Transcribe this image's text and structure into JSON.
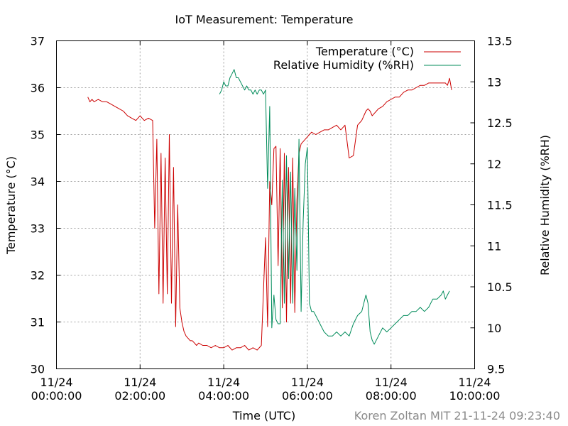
{
  "chart_data": {
    "type": "line",
    "title": "IoT Measurement: Temperature",
    "xlabel": "Time (UTC)",
    "ylabel": "Temperature (°C)",
    "y2label": "Relative Humidity (%RH)",
    "credit": "Koren Zoltan MIT 21-11-24 09:23:40",
    "xlim": [
      0,
      10
    ],
    "ylim": [
      30,
      37
    ],
    "y2lim": [
      9.5,
      13.5
    ],
    "grid": true,
    "legend_position": "top-right",
    "x_ticks": [
      {
        "value": 0,
        "date": "11/24",
        "time": "00:00:00"
      },
      {
        "value": 2,
        "date": "11/24",
        "time": "02:00:00"
      },
      {
        "value": 4,
        "date": "11/24",
        "time": "04:00:00"
      },
      {
        "value": 6,
        "date": "11/24",
        "time": "06:00:00"
      },
      {
        "value": 8,
        "date": "11/24",
        "time": "08:00:00"
      },
      {
        "value": 10,
        "date": "11/24",
        "time": "10:00:00"
      }
    ],
    "y_ticks": [
      30,
      31,
      32,
      33,
      34,
      35,
      36,
      37
    ],
    "y2_ticks": [
      9.5,
      10,
      10.5,
      11,
      11.5,
      12,
      12.5,
      13,
      13.5
    ],
    "series": [
      {
        "name": "Temperature (°C)",
        "axis": "y",
        "color": "#cc0000",
        "x": [
          0.75,
          0.8,
          0.85,
          0.9,
          1.0,
          1.1,
          1.2,
          1.3,
          1.4,
          1.5,
          1.6,
          1.7,
          1.8,
          1.9,
          2.0,
          2.1,
          2.2,
          2.3,
          2.35,
          2.4,
          2.45,
          2.5,
          2.55,
          2.6,
          2.65,
          2.7,
          2.75,
          2.8,
          2.85,
          2.9,
          2.95,
          3.0,
          3.05,
          3.1,
          3.15,
          3.2,
          3.25,
          3.3,
          3.35,
          3.4,
          3.5,
          3.6,
          3.7,
          3.8,
          3.9,
          4.0,
          4.1,
          4.2,
          4.3,
          4.4,
          4.5,
          4.6,
          4.7,
          4.8,
          4.9,
          5.0,
          5.05,
          5.1,
          5.15,
          5.2,
          5.25,
          5.3,
          5.35,
          5.4,
          5.45,
          5.5,
          5.55,
          5.6,
          5.65,
          5.7,
          5.75,
          5.8,
          5.85,
          5.9,
          5.95,
          6.0,
          6.05,
          6.1,
          6.2,
          6.3,
          6.4,
          6.5,
          6.6,
          6.7,
          6.8,
          6.9,
          7.0,
          7.1,
          7.2,
          7.3,
          7.4,
          7.45,
          7.5,
          7.55,
          7.6,
          7.65,
          7.7,
          7.8,
          7.9,
          8.0,
          8.1,
          8.2,
          8.3,
          8.4,
          8.5,
          8.6,
          8.7,
          8.8,
          8.9,
          9.0,
          9.1,
          9.2,
          9.3,
          9.35,
          9.4,
          9.45
        ],
        "values": [
          35.8,
          35.7,
          35.75,
          35.7,
          35.75,
          35.7,
          35.7,
          35.65,
          35.6,
          35.55,
          35.5,
          35.4,
          35.35,
          35.3,
          35.4,
          35.3,
          35.35,
          35.3,
          33.0,
          34.9,
          31.6,
          34.6,
          31.4,
          34.5,
          31.6,
          35.0,
          31.4,
          34.3,
          30.9,
          33.5,
          31.3,
          31.0,
          30.8,
          30.7,
          30.65,
          30.6,
          30.6,
          30.55,
          30.5,
          30.55,
          30.5,
          30.5,
          30.45,
          30.5,
          30.45,
          30.45,
          30.5,
          30.4,
          30.45,
          30.45,
          30.5,
          30.4,
          30.45,
          30.4,
          30.5,
          32.8,
          30.9,
          34.0,
          33.5,
          34.7,
          34.75,
          32.2,
          34.7,
          31.3,
          34.6,
          31.0,
          34.3,
          31.4,
          34.5,
          31.2,
          33.6,
          34.6,
          34.8,
          34.85,
          34.9,
          34.95,
          35.0,
          35.05,
          35.0,
          35.05,
          35.1,
          35.1,
          35.15,
          35.2,
          35.1,
          35.2,
          34.5,
          34.55,
          35.2,
          35.3,
          35.5,
          35.55,
          35.5,
          35.4,
          35.45,
          35.5,
          35.55,
          35.6,
          35.7,
          35.75,
          35.8,
          35.8,
          35.9,
          35.95,
          35.95,
          36.0,
          36.05,
          36.05,
          36.1,
          36.1,
          36.1,
          36.1,
          36.1,
          36.05,
          36.2,
          35.95
        ]
      },
      {
        "name": "Relative Humidity (%RH)",
        "axis": "y2",
        "color": "#008b5a",
        "x": [
          3.9,
          3.95,
          4.0,
          4.05,
          4.1,
          4.15,
          4.2,
          4.25,
          4.3,
          4.35,
          4.4,
          4.45,
          4.5,
          4.55,
          4.6,
          4.65,
          4.7,
          4.75,
          4.8,
          4.85,
          4.9,
          4.95,
          5.0,
          5.05,
          5.1,
          5.15,
          5.2,
          5.25,
          5.3,
          5.35,
          5.4,
          5.45,
          5.5,
          5.55,
          5.6,
          5.65,
          5.7,
          5.75,
          5.8,
          5.85,
          5.9,
          5.95,
          6.0,
          6.05,
          6.1,
          6.15,
          6.2,
          6.3,
          6.4,
          6.5,
          6.6,
          6.7,
          6.8,
          6.9,
          7.0,
          7.1,
          7.2,
          7.3,
          7.35,
          7.4,
          7.45,
          7.5,
          7.55,
          7.6,
          7.7,
          7.8,
          7.9,
          8.0,
          8.1,
          8.2,
          8.3,
          8.4,
          8.5,
          8.6,
          8.7,
          8.8,
          8.9,
          9.0,
          9.1,
          9.2,
          9.25,
          9.3,
          9.35,
          9.4
        ],
        "values": [
          12.85,
          12.9,
          13.0,
          12.95,
          12.95,
          13.05,
          13.1,
          13.15,
          13.05,
          13.05,
          13.0,
          12.95,
          12.9,
          12.95,
          12.9,
          12.9,
          12.85,
          12.9,
          12.85,
          12.9,
          12.9,
          12.85,
          12.9,
          11.7,
          12.7,
          10.0,
          10.4,
          10.1,
          10.05,
          10.05,
          11.8,
          10.3,
          12.1,
          10.6,
          11.9,
          10.3,
          11.7,
          10.7,
          12.3,
          10.2,
          11.3,
          12.0,
          12.2,
          10.3,
          10.2,
          10.2,
          10.15,
          10.05,
          9.95,
          9.9,
          9.9,
          9.95,
          9.9,
          9.95,
          9.9,
          10.05,
          10.15,
          10.2,
          10.3,
          10.4,
          10.3,
          9.95,
          9.85,
          9.8,
          9.9,
          10.0,
          9.95,
          10.0,
          10.05,
          10.1,
          10.15,
          10.15,
          10.2,
          10.2,
          10.25,
          10.2,
          10.25,
          10.35,
          10.35,
          10.4,
          10.45,
          10.35,
          10.4,
          10.45
        ]
      }
    ]
  }
}
